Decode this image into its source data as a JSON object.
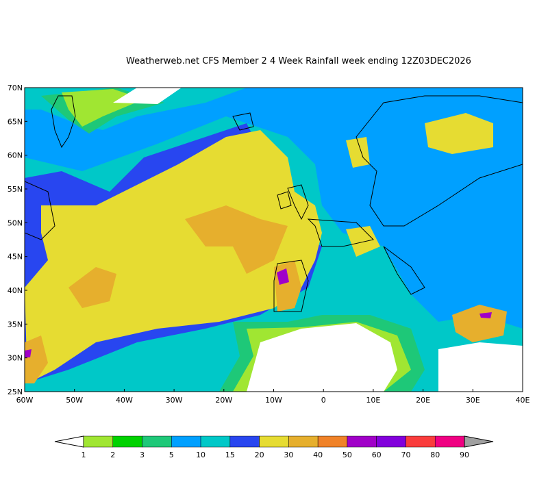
{
  "title": "Weatherweb.net CFS Member 2 4 Week Rainfall week ending 12Z03DEC2026",
  "lat_labels": [
    "70N",
    "65N",
    "60N",
    "55N",
    "50N",
    "45N",
    "40N",
    "35N",
    "30N",
    "25N"
  ],
  "lon_labels": [
    "60W",
    "50W",
    "40W",
    "30W",
    "20W",
    "10W",
    "0",
    "10E",
    "20E",
    "30E",
    "40E"
  ],
  "legend": {
    "labels": [
      "1",
      "2",
      "3",
      "5",
      "10",
      "15",
      "20",
      "30",
      "40",
      "50",
      "60",
      "70",
      "80",
      "90"
    ],
    "colors": [
      "#a0e632",
      "#00d200",
      "#1ec878",
      "#00a0ff",
      "#00c8c8",
      "#2846f0",
      "#e6dc32",
      "#e6af2d",
      "#f08228",
      "#a000c8",
      "#8200dc",
      "#fa3c3c",
      "#f00082"
    ],
    "under_color": "#ffffff",
    "over_color": "#a0a0a0"
  }
}
